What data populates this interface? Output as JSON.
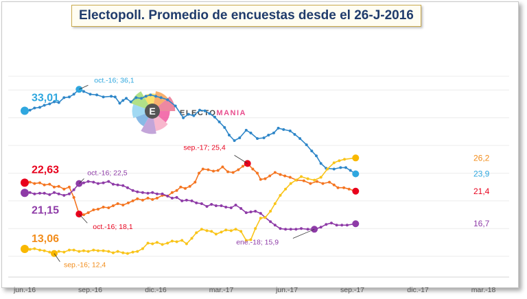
{
  "chart_data": {
    "type": "line",
    "title": "Electopoll. Promedio de encuestas desde el 26-J-2016",
    "xlabel": "",
    "ylabel": "",
    "ylim": [
      9,
      40
    ],
    "x_ticks": [
      "jun.-16",
      "sep.-16",
      "dic.-16",
      "mar.-17",
      "jun.-17",
      "sep.-17",
      "dic.-17",
      "mar.-18"
    ],
    "grid": true,
    "legend": "none",
    "series": [
      {
        "color": "#2e86c8",
        "marker": "#2fa7df",
        "values": [
          [
            0,
            33.01
          ],
          [
            0.08,
            33.1
          ],
          [
            0.15,
            33.4
          ],
          [
            0.23,
            33.5
          ],
          [
            0.3,
            33.8
          ],
          [
            0.38,
            34.0
          ],
          [
            0.45,
            34.3
          ],
          [
            0.52,
            34.2
          ],
          [
            0.6,
            34.9
          ],
          [
            0.68,
            35.0
          ],
          [
            0.75,
            35.4
          ],
          [
            0.83,
            36.1
          ],
          [
            0.9,
            35.8
          ],
          [
            1.0,
            35.4
          ],
          [
            1.1,
            35.3
          ],
          [
            1.2,
            35.0
          ],
          [
            1.32,
            35.1
          ],
          [
            1.38,
            35.0
          ],
          [
            1.45,
            34.1
          ],
          [
            1.5,
            34.5
          ],
          [
            1.55,
            34.8
          ],
          [
            1.62,
            34.3
          ],
          [
            1.7,
            34.9
          ],
          [
            1.78,
            34.8
          ],
          [
            1.85,
            35.1
          ],
          [
            1.92,
            35.3
          ],
          [
            2.0,
            35.1
          ],
          [
            2.08,
            34.9
          ],
          [
            2.18,
            34.6
          ],
          [
            2.3,
            33.7
          ],
          [
            2.42,
            32.0
          ],
          [
            2.5,
            32.5
          ],
          [
            2.58,
            32.3
          ],
          [
            2.67,
            33.1
          ],
          [
            2.75,
            33.0
          ],
          [
            2.82,
            32.6
          ],
          [
            2.9,
            32.1
          ],
          [
            2.97,
            31.4
          ],
          [
            3.05,
            30.6
          ],
          [
            3.12,
            29.5
          ],
          [
            3.2,
            28.7
          ],
          [
            3.28,
            29.1
          ],
          [
            3.38,
            30.2
          ],
          [
            3.45,
            29.8
          ],
          [
            3.55,
            29.0
          ],
          [
            3.65,
            29.1
          ],
          [
            3.72,
            29.5
          ],
          [
            3.8,
            29.8
          ],
          [
            3.87,
            30.5
          ],
          [
            3.95,
            30.3
          ],
          [
            4.05,
            30.1
          ],
          [
            4.12,
            29.6
          ],
          [
            4.2,
            29.0
          ],
          [
            4.3,
            28.1
          ],
          [
            4.38,
            27.2
          ],
          [
            4.45,
            26.5
          ],
          [
            4.52,
            25.4
          ],
          [
            4.6,
            24.7
          ],
          [
            4.72,
            24.6
          ],
          [
            4.82,
            24.8
          ],
          [
            4.9,
            24.8
          ],
          [
            4.97,
            24.4
          ],
          [
            5.05,
            23.9
          ]
        ],
        "start_label": "33,01",
        "end_label": "23,9",
        "annotations": [
          {
            "x": 0.83,
            "y": 36.1,
            "text": "oct.-16; 36,1"
          }
        ]
      },
      {
        "color": "#f47521",
        "marker": "#e8001c",
        "values": [
          [
            0,
            22.63
          ],
          [
            0.08,
            22.7
          ],
          [
            0.15,
            22.5
          ],
          [
            0.23,
            22.6
          ],
          [
            0.3,
            22.3
          ],
          [
            0.38,
            22.4
          ],
          [
            0.45,
            22.0
          ],
          [
            0.52,
            22.1
          ],
          [
            0.6,
            21.7
          ],
          [
            0.68,
            22.0
          ],
          [
            0.75,
            20.5
          ],
          [
            0.83,
            18.1
          ],
          [
            0.9,
            18.0
          ],
          [
            0.97,
            18.3
          ],
          [
            1.05,
            18.7
          ],
          [
            1.12,
            18.8
          ],
          [
            1.2,
            19.1
          ],
          [
            1.28,
            19.0
          ],
          [
            1.35,
            19.3
          ],
          [
            1.42,
            19.6
          ],
          [
            1.5,
            19.4
          ],
          [
            1.58,
            19.7
          ],
          [
            1.65,
            20.0
          ],
          [
            1.72,
            20.3
          ],
          [
            1.8,
            20.1
          ],
          [
            1.88,
            20.4
          ],
          [
            1.95,
            20.2
          ],
          [
            2.02,
            20.4
          ],
          [
            2.1,
            20.8
          ],
          [
            2.18,
            20.7
          ],
          [
            2.25,
            21.2
          ],
          [
            2.32,
            21.5
          ],
          [
            2.38,
            22.0
          ],
          [
            2.45,
            21.8
          ],
          [
            2.52,
            22.1
          ],
          [
            2.6,
            22.7
          ],
          [
            2.66,
            24.0
          ],
          [
            2.72,
            24.6
          ],
          [
            2.8,
            24.5
          ],
          [
            2.88,
            24.3
          ],
          [
            2.95,
            24.4
          ],
          [
            3.02,
            24.9
          ],
          [
            3.1,
            24.2
          ],
          [
            3.18,
            24.1
          ],
          [
            3.26,
            24.5
          ],
          [
            3.33,
            25.0
          ],
          [
            3.4,
            25.4
          ],
          [
            3.48,
            24.6
          ],
          [
            3.55,
            24.0
          ],
          [
            3.6,
            23.1
          ],
          [
            3.67,
            23.2
          ],
          [
            3.74,
            23.6
          ],
          [
            3.82,
            24.1
          ],
          [
            3.9,
            23.8
          ],
          [
            3.97,
            23.6
          ],
          [
            4.05,
            23.4
          ],
          [
            4.15,
            23.0
          ],
          [
            4.26,
            22.9
          ],
          [
            4.36,
            22.5
          ],
          [
            4.46,
            22.8
          ],
          [
            4.55,
            22.5
          ],
          [
            4.65,
            22.7
          ],
          [
            4.72,
            22.3
          ],
          [
            4.78,
            21.9
          ],
          [
            4.87,
            21.9
          ],
          [
            4.95,
            21.7
          ],
          [
            5.05,
            21.4
          ]
        ],
        "start_label": "22,63",
        "end_label": "21,4",
        "annotations": [
          {
            "x": 0.83,
            "y": 18.1,
            "text": "oct.-16; 18,1"
          },
          {
            "x": 3.4,
            "y": 25.4,
            "text": "sep.-17; 25,4"
          }
        ]
      },
      {
        "color": "#8e3ba7",
        "marker": "#8e3ba7",
        "values": [
          [
            0,
            21.15
          ],
          [
            0.08,
            21.2
          ],
          [
            0.15,
            21.0
          ],
          [
            0.23,
            21.1
          ],
          [
            0.3,
            21.1
          ],
          [
            0.38,
            20.9
          ],
          [
            0.45,
            21.2
          ],
          [
            0.52,
            21.0
          ],
          [
            0.6,
            20.8
          ],
          [
            0.68,
            21.0
          ],
          [
            0.75,
            21.6
          ],
          [
            0.83,
            22.5
          ],
          [
            0.9,
            22.6
          ],
          [
            0.97,
            22.8
          ],
          [
            1.05,
            22.7
          ],
          [
            1.12,
            22.5
          ],
          [
            1.2,
            22.6
          ],
          [
            1.28,
            22.8
          ],
          [
            1.35,
            22.4
          ],
          [
            1.42,
            22.3
          ],
          [
            1.5,
            22.2
          ],
          [
            1.57,
            21.9
          ],
          [
            1.65,
            21.5
          ],
          [
            1.72,
            21.3
          ],
          [
            1.8,
            21.2
          ],
          [
            1.88,
            21.1
          ],
          [
            1.95,
            21.2
          ],
          [
            2.02,
            21.0
          ],
          [
            2.1,
            21.0
          ],
          [
            2.18,
            20.7
          ],
          [
            2.25,
            20.4
          ],
          [
            2.32,
            20.5
          ],
          [
            2.4,
            20.0
          ],
          [
            2.47,
            20.1
          ],
          [
            2.55,
            20.0
          ],
          [
            2.62,
            19.7
          ],
          [
            2.7,
            19.6
          ],
          [
            2.78,
            19.2
          ],
          [
            2.85,
            19.5
          ],
          [
            2.92,
            19.3
          ],
          [
            3.0,
            19.3
          ],
          [
            3.07,
            19.1
          ],
          [
            3.15,
            19.0
          ],
          [
            3.22,
            19.4
          ],
          [
            3.3,
            18.9
          ],
          [
            3.38,
            18.3
          ],
          [
            3.45,
            18.4
          ],
          [
            3.52,
            18.5
          ],
          [
            3.6,
            18.2
          ],
          [
            3.67,
            17.6
          ],
          [
            3.75,
            17.0
          ],
          [
            3.82,
            16.5
          ],
          [
            3.9,
            16.0
          ],
          [
            3.98,
            15.9
          ],
          [
            4.06,
            15.9
          ],
          [
            4.14,
            15.9
          ],
          [
            4.22,
            16.0
          ],
          [
            4.32,
            15.9
          ],
          [
            4.42,
            15.9
          ],
          [
            4.52,
            16.2
          ],
          [
            4.6,
            16.6
          ],
          [
            4.68,
            16.8
          ],
          [
            4.76,
            16.5
          ],
          [
            4.84,
            16.5
          ],
          [
            4.92,
            16.5
          ],
          [
            5.05,
            16.7
          ]
        ],
        "start_label": "21,15",
        "end_label": "16,7",
        "annotations": [
          {
            "x": 0.83,
            "y": 22.5,
            "text": "oct.-16; 22,5"
          },
          {
            "x": 4.42,
            "y": 15.9,
            "text": "ene.-18;  15,9"
          }
        ]
      },
      {
        "color": "#f9c419",
        "marker": "#f9b800",
        "values": [
          [
            0,
            13.06
          ],
          [
            0.08,
            13.0
          ],
          [
            0.15,
            13.1
          ],
          [
            0.23,
            12.9
          ],
          [
            0.3,
            12.8
          ],
          [
            0.38,
            12.6
          ],
          [
            0.45,
            12.4
          ],
          [
            0.52,
            12.7
          ],
          [
            0.6,
            12.6
          ],
          [
            0.68,
            12.9
          ],
          [
            0.75,
            12.9
          ],
          [
            0.83,
            12.7
          ],
          [
            0.9,
            12.8
          ],
          [
            0.97,
            12.7
          ],
          [
            1.05,
            12.9
          ],
          [
            1.12,
            12.8
          ],
          [
            1.2,
            12.8
          ],
          [
            1.28,
            12.7
          ],
          [
            1.35,
            12.5
          ],
          [
            1.42,
            12.7
          ],
          [
            1.5,
            12.5
          ],
          [
            1.57,
            12.4
          ],
          [
            1.65,
            12.6
          ],
          [
            1.72,
            12.7
          ],
          [
            1.8,
            13.1
          ],
          [
            1.88,
            13.9
          ],
          [
            1.95,
            13.8
          ],
          [
            2.02,
            14.0
          ],
          [
            2.1,
            13.7
          ],
          [
            2.18,
            13.9
          ],
          [
            2.25,
            14.2
          ],
          [
            2.32,
            14.1
          ],
          [
            2.4,
            14.3
          ],
          [
            2.47,
            13.8
          ],
          [
            2.55,
            14.6
          ],
          [
            2.62,
            15.4
          ],
          [
            2.7,
            15.9
          ],
          [
            2.78,
            15.7
          ],
          [
            2.85,
            15.6
          ],
          [
            2.92,
            15.2
          ],
          [
            3.0,
            15.5
          ],
          [
            3.07,
            15.8
          ],
          [
            3.15,
            15.7
          ],
          [
            3.22,
            15.9
          ],
          [
            3.3,
            15.6
          ],
          [
            3.38,
            14.3
          ],
          [
            3.45,
            14.4
          ],
          [
            3.52,
            16.0
          ],
          [
            3.6,
            17.5
          ],
          [
            3.67,
            17.6
          ],
          [
            3.75,
            18.5
          ],
          [
            3.82,
            19.6
          ],
          [
            3.9,
            20.8
          ],
          [
            3.98,
            21.7
          ],
          [
            4.06,
            22.5
          ],
          [
            4.14,
            23.0
          ],
          [
            4.22,
            23.5
          ],
          [
            4.32,
            23.2
          ],
          [
            4.42,
            23.0
          ],
          [
            4.52,
            23.4
          ],
          [
            4.62,
            24.6
          ],
          [
            4.72,
            25.5
          ],
          [
            4.8,
            25.8
          ],
          [
            4.88,
            26.0
          ],
          [
            5.05,
            26.2
          ]
        ],
        "start_label": "13,06",
        "end_label": "26,2",
        "annotations": [
          {
            "x": 0.45,
            "y": 12.4,
            "text": "sep.-16; 12,4"
          }
        ]
      }
    ]
  },
  "logo": {
    "text_a": "ELECTO",
    "text_b": "MANIA",
    "letter": "E"
  }
}
